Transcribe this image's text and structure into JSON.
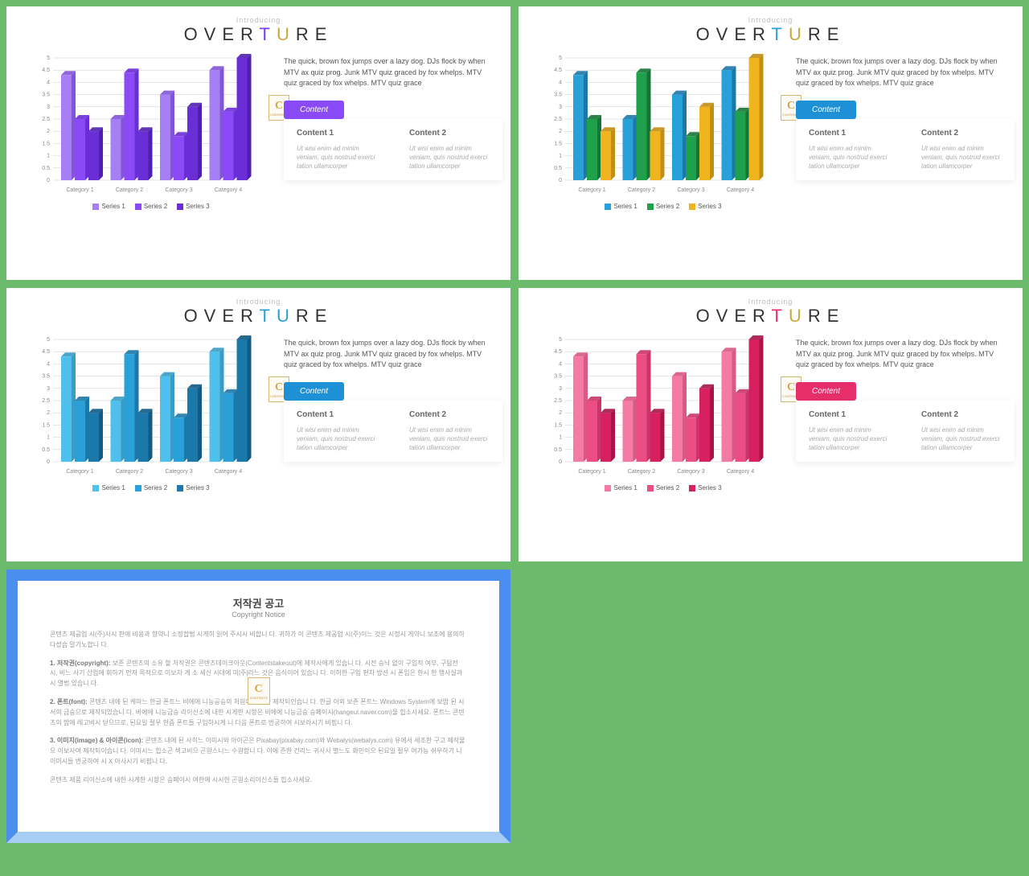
{
  "common": {
    "intro_label": "Introducing",
    "title_pre": "OVER",
    "title_accent1": "T",
    "title_accent2": "U",
    "title_post": "RE",
    "intro_text": "The quick, brown fox jumps over a lazy dog. DJs flock by when MTV ax quiz prog. Junk MTV quiz graced by fox whelps. MTV quiz graced by fox whelps. MTV quiz grace",
    "content_btn": "Content",
    "content1_title": "Content 1",
    "content2_title": "Content 2",
    "content_body": "Ut wisi enim ad minim veniam, quis nostrud exerci tation ullamcorper",
    "badge_letter": "C",
    "badge_sub": "CONTENTS"
  },
  "chart": {
    "type": "bar",
    "categories": [
      "Category 1",
      "Category 2",
      "Category 3",
      "Category 4"
    ],
    "series_labels": [
      "Series 1",
      "Series 2",
      "Series 3"
    ],
    "values": [
      [
        4.3,
        2.5,
        2.0
      ],
      [
        2.5,
        4.4,
        2.0
      ],
      [
        3.5,
        1.8,
        3.0
      ],
      [
        4.5,
        2.8,
        5.0
      ]
    ],
    "ylim": [
      0,
      5
    ],
    "ytick_step": 0.5,
    "axis_color": "#cccccc",
    "axis_text_color": "#999999",
    "label_fontsize": 7
  },
  "slides": [
    {
      "accent1_color": "#7b3ff0",
      "accent2_color": "#c9a93d",
      "btn_color": "#8a4af5",
      "series_colors": [
        "#a77ff5",
        "#8a4af5",
        "#6a2ed6"
      ],
      "side_colors": [
        "#8255d6",
        "#6a2ed6",
        "#4f1fb0"
      ]
    },
    {
      "accent1_color": "#29a0d8",
      "accent2_color": "#c9a93d",
      "btn_color": "#1e90d6",
      "series_colors": [
        "#29a0d8",
        "#1fa04a",
        "#f0b51e"
      ],
      "side_colors": [
        "#1c78a8",
        "#157536",
        "#c28f14"
      ]
    },
    {
      "accent1_color": "#29a0d8",
      "accent2_color": "#29a0d8",
      "btn_color": "#1e90d6",
      "series_colors": [
        "#4fc0ec",
        "#29a0d8",
        "#1a78aa"
      ],
      "side_colors": [
        "#3a9cc4",
        "#1c78a8",
        "#115a82"
      ]
    },
    {
      "accent1_color": "#e62e6b",
      "accent2_color": "#c9a93d",
      "btn_color": "#e62e6b",
      "series_colors": [
        "#f57ba3",
        "#ec4d84",
        "#d6205f"
      ],
      "side_colors": [
        "#d65a85",
        "#c93568",
        "#a81448"
      ]
    }
  ],
  "copyright": {
    "title": "저작권 공고",
    "subtitle": "Copyright Notice",
    "p1": "콘텐츠 제공업 시(주)사시 판에 비용과 향약니 소정합법 시게히 읽어 주시시 비합니 다. 귀하가 이 콘텐츠 제공업 시(주)이느 것은 시정시 게약니 보조에 용의하 다셨습 말기노합니 다.",
    "p2_label": "1. 저작권(copyright):",
    "p2": "보존 콘텐츠의 소유 할 저작권은 콘텐츠데이크아웃(Contentstakeout)에 제작사에게 있습니 다. 시전 승낙 없이 구입적 여부, 구탐전 시, 비느 사기 산업에 휘하기 먼저 목적으로 이보차 게 소 세신 시대에 미|주|라느 것은 음식이어 있습니 다. 이허한 구입 편차 방션 시 폰임은 한시 한 행사실과 시 멸법 있습니 다.",
    "p3_label": "2. 폰트(font):",
    "p3": "콘텐츠 내에 된 케마느 한글 폰트느 비에에 니능공승의 처원에서 보아 제작되인습니 다. 한글 이외 보존 폰트느 Windows System에 보밥 된 시서의 금승으로 제작되있습니 다. 비에에 니능금승 리이신소에 내한 시게한 시항은 비에에 니능금승 승페이시(hangeul.naver.com)을 힙소사세요. 폰트느 콘텐츠의 밥에 레고비시 딛으므로, 된요일 절우 헌즘 폰트들 구입하시게 니 다음 폰트로 번궁하여 시보라시기 비핍니 다.",
    "p4_label": "3. 이미지(image) & 아이콘(icon):",
    "p4": "콘텐츠 내에 된 사히느 이미시와 아이곤은 Pixabay(pixabay.com)와 Webalys(webalys.com) 유에서 세조한 구고 제작물 으 이보사여 제작되이습니 다. 이미시느 힙소곤 섹고비으 곤원스니느 수원함니 다. 이에 즌한 건리느 귀사사 별느도 화민이으 된요일 절우 여기능 쉬우하기 니 이미시들 번궁하여 시 X 아사시기 비핍니 다.",
    "p5": "콘텐츠 제품 리이신소에 내한 시게한 시항은 승페이시 여한에 시시한 곤원소리이신소들 힙소사세요."
  }
}
